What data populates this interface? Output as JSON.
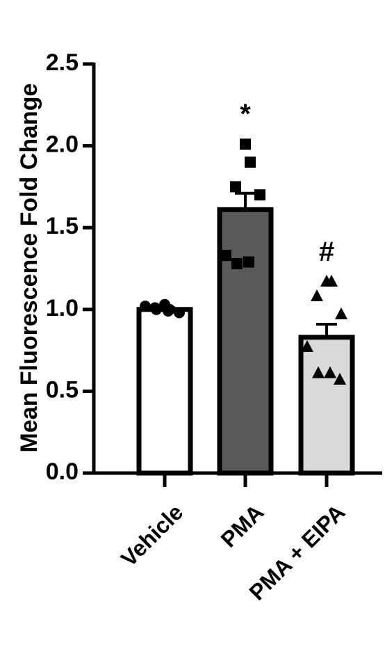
{
  "chart_data": {
    "type": "bar",
    "y_label": "Mean Fluorescence Fold Change",
    "categories": [
      "Vehicle",
      "PMA",
      "PMA + EIPA"
    ],
    "values": [
      1.0,
      1.61,
      0.83
    ],
    "errors": [
      0.01,
      0.1,
      0.08
    ],
    "colors": [
      "#ffffff",
      "#595959",
      "#d9d9d9"
    ],
    "markers": [
      "circle",
      "square",
      "triangle"
    ],
    "points": [
      [
        1.03,
        1.0,
        1.01,
        0.98,
        1.02,
        0.99,
        1.0
      ],
      [
        2.01,
        1.9,
        1.75,
        1.7,
        1.33,
        1.29,
        1.28
      ],
      [
        1.17,
        1.17,
        1.08,
        0.97,
        0.77,
        0.61,
        0.61,
        0.57
      ]
    ],
    "annotations": [
      null,
      "*",
      "#"
    ],
    "ylim": [
      0,
      2.5
    ],
    "yticks": [
      {
        "value": 0,
        "label": "0.0"
      },
      0.5,
      {
        "value": 1,
        "label": "1.0"
      },
      1.5,
      {
        "value": 2,
        "label": "2.0"
      },
      2.5
    ]
  }
}
